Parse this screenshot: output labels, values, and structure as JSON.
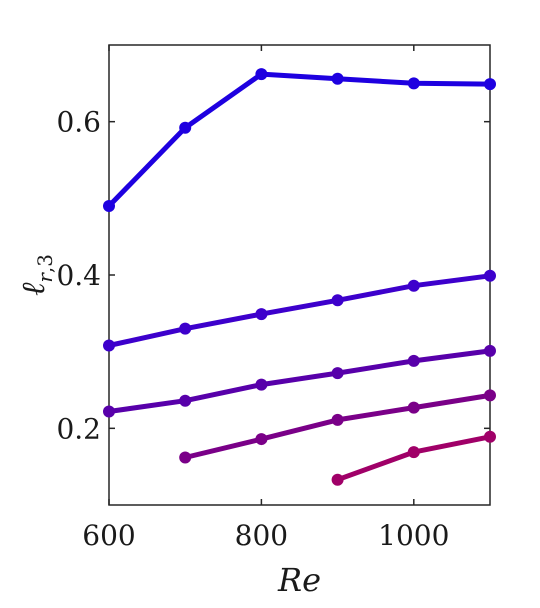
{
  "chart_data": {
    "type": "line",
    "xlabel": "Re",
    "ylabel": {
      "base": "ℓ",
      "subscript_var": "r",
      "subscript_sep": ",",
      "subscript_num": "3"
    },
    "xlim": [
      600,
      1100
    ],
    "ylim": [
      0.1,
      0.7
    ],
    "xticks": [
      600,
      800,
      1000
    ],
    "xtick_labels": [
      "600",
      "800",
      "1000"
    ],
    "yticks": [
      0.2,
      0.4,
      0.6
    ],
    "ytick_labels": [
      "0.2",
      "0.4",
      "0.6"
    ],
    "grid": false,
    "series": [
      {
        "color": "#1e00e0",
        "x": [
          600,
          700,
          800,
          900,
          1000,
          1100
        ],
        "values": [
          0.49,
          0.592,
          0.662,
          0.656,
          0.65,
          0.649
        ]
      },
      {
        "color": "#3d00cc",
        "x": [
          600,
          700,
          800,
          900,
          1000,
          1100
        ],
        "values": [
          0.308,
          0.33,
          0.349,
          0.367,
          0.386,
          0.399
        ]
      },
      {
        "color": "#5800aa",
        "x": [
          600,
          700,
          800,
          900,
          1000,
          1100
        ],
        "values": [
          0.222,
          0.236,
          0.257,
          0.272,
          0.288,
          0.301
        ]
      },
      {
        "color": "#7a0088",
        "x": [
          700,
          800,
          900,
          1000,
          1100
        ],
        "values": [
          0.162,
          0.186,
          0.211,
          0.227,
          0.243
        ]
      },
      {
        "color": "#a00068",
        "x": [
          900,
          1000,
          1100
        ],
        "values": [
          0.133,
          0.169,
          0.189
        ]
      }
    ]
  }
}
